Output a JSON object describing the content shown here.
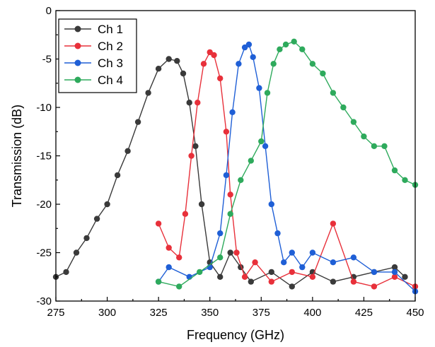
{
  "chart_data": {
    "type": "line",
    "xlabel": "Frequency (GHz)",
    "ylabel": "Transmission (dB)",
    "xlim": [
      275,
      450
    ],
    "ylim": [
      -30,
      0
    ],
    "xticks": [
      275,
      300,
      325,
      350,
      375,
      400,
      425,
      450
    ],
    "yticks": [
      0,
      -5,
      -10,
      -15,
      -20,
      -25,
      -30
    ],
    "legend_position": "top-left",
    "grid": false,
    "series": [
      {
        "name": "Ch 1",
        "color": "#3a3a3a",
        "x": [
          275,
          280,
          285,
          290,
          295,
          300,
          305,
          310,
          315,
          320,
          325,
          330,
          334,
          337,
          340,
          343,
          346,
          350,
          355,
          360,
          365,
          370,
          380,
          390,
          400,
          410,
          420,
          430,
          440,
          445
        ],
        "y": [
          -27.5,
          -27,
          -25,
          -23.5,
          -21.5,
          -20,
          -17,
          -14.5,
          -11.5,
          -8.5,
          -6,
          -5,
          -5.2,
          -6.5,
          -9.5,
          -14,
          -20,
          -26,
          -27.5,
          -25,
          -26.5,
          -28,
          -27,
          -28.5,
          -27,
          -28,
          -27.5,
          -27,
          -26.5,
          -27.5
        ]
      },
      {
        "name": "Ch 2",
        "color": "#e8303a",
        "x": [
          325,
          330,
          335,
          338,
          341,
          344,
          347,
          350,
          352,
          355,
          358,
          360,
          363,
          367,
          372,
          380,
          390,
          400,
          410,
          420,
          430,
          440,
          450
        ],
        "y": [
          -22,
          -24.5,
          -25.5,
          -21,
          -15,
          -9.5,
          -5.5,
          -4.3,
          -4.6,
          -7,
          -12.5,
          -19,
          -25,
          -27.5,
          -26,
          -28,
          -27,
          -27.5,
          -22,
          -28,
          -28.5,
          -27.5,
          -28.5
        ]
      },
      {
        "name": "Ch 3",
        "color": "#1f5fd6",
        "x": [
          325,
          330,
          340,
          350,
          355,
          358,
          361,
          364,
          367,
          369,
          371,
          374,
          377,
          380,
          383,
          386,
          390,
          395,
          400,
          410,
          420,
          430,
          440,
          450
        ],
        "y": [
          -28,
          -26.5,
          -27.5,
          -26.5,
          -23,
          -17,
          -10.5,
          -5.5,
          -3.8,
          -3.5,
          -4.8,
          -8,
          -14,
          -20,
          -23,
          -26,
          -25,
          -26.5,
          -25,
          -26,
          -25.5,
          -27,
          -27,
          -29
        ]
      },
      {
        "name": "Ch 4",
        "color": "#2eaa5c",
        "x": [
          325,
          335,
          345,
          355,
          360,
          365,
          370,
          375,
          378,
          381,
          384,
          387,
          391,
          395,
          400,
          405,
          410,
          415,
          420,
          425,
          430,
          435,
          440,
          445,
          450
        ],
        "y": [
          -28,
          -28.5,
          -27,
          -25.5,
          -21,
          -17.5,
          -15.5,
          -13.5,
          -8.5,
          -5.5,
          -4,
          -3.5,
          -3.2,
          -4,
          -5.5,
          -6.5,
          -8.5,
          -10,
          -11.5,
          -13,
          -14,
          -14,
          -16.5,
          -17.5,
          -18
        ]
      }
    ]
  }
}
